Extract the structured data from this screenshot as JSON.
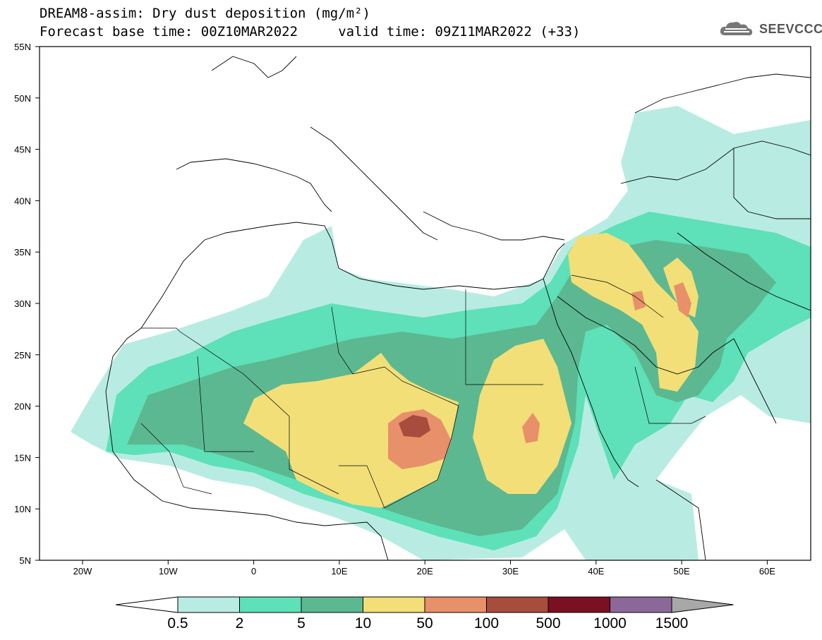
{
  "header": {
    "title_line1": "DREAM8-assim: Dry dust deposition (mg/m²)",
    "title_line2": "Forecast base time: 00Z10MAR2022     valid time: 09Z11MAR2022 (+33)",
    "logo_text": "SEEVCCC"
  },
  "map": {
    "lat_labels": [
      "55N",
      "50N",
      "45N",
      "40N",
      "35N",
      "30N",
      "25N",
      "20N",
      "15N",
      "10N",
      "5N"
    ],
    "lon_labels": [
      "20W",
      "10W",
      "0",
      "10E",
      "20E",
      "30E",
      "40E",
      "50E",
      "60E"
    ]
  },
  "colorbar": {
    "labels": [
      "0.5",
      "2",
      "5",
      "10",
      "50",
      "100",
      "500",
      "1000",
      "1500"
    ],
    "colors": [
      "#b8ece2",
      "#5ee0b8",
      "#5cb890",
      "#f2df78",
      "#e8906a",
      "#a84c3e",
      "#7a1022",
      "#8c6898",
      "#a8a8a8"
    ]
  }
}
